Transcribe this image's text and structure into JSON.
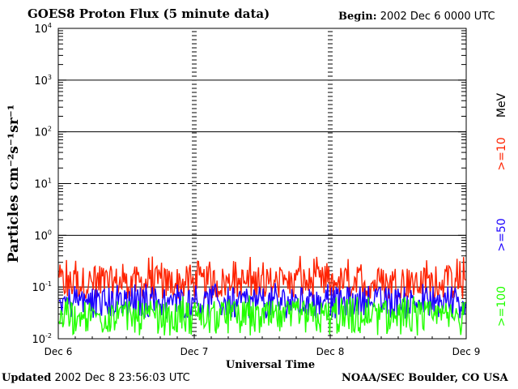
{
  "header": {
    "title": "GOES8 Proton Flux (5 minute data)",
    "begin_label": "Begin:",
    "begin_value": "2002 Dec 6 0000 UTC"
  },
  "footer": {
    "updated_label": "Updated",
    "updated_value": "2002 Dec  8 23:56:03 UTC",
    "credit": "NOAA/SEC Boulder, CO USA"
  },
  "chart_data": {
    "type": "line",
    "title": "GOES8 Proton Flux (5 minute data)",
    "xlabel": "Universal Time",
    "ylabel": "Particles cm⁻²s⁻¹sr⁻¹",
    "y_scale": "log",
    "ylim": [
      0.01,
      10000
    ],
    "xlim": [
      "Dec 6",
      "Dec 9"
    ],
    "x_tick_labels": [
      "Dec 6",
      "Dec 7",
      "Dec 8",
      "Dec 9"
    ],
    "y_tick_labels": [
      {
        "base": "10",
        "exp": "4"
      },
      {
        "base": "10",
        "exp": "3"
      },
      {
        "base": "10",
        "exp": "2"
      },
      {
        "base": "10",
        "exp": "1"
      },
      {
        "base": "10",
        "exp": "0"
      },
      {
        "base": "10",
        "exp": "-1"
      },
      {
        "base": "10",
        "exp": "-2"
      }
    ],
    "unit_label": "MeV",
    "grid": true,
    "legend": "right, vertical",
    "series": [
      {
        "name": ">=10",
        "color": "#ff2200",
        "typical_range": [
          0.06,
          0.4
        ],
        "typical_value": 0.12
      },
      {
        "name": ">=50",
        "color": "#1a00ff",
        "typical_range": [
          0.02,
          0.12
        ],
        "typical_value": 0.05
      },
      {
        "name": ">=100",
        "color": "#22ff00",
        "typical_range": [
          0.01,
          0.07
        ],
        "typical_value": 0.025
      }
    ],
    "threshold_lines": [
      {
        "value": 10,
        "style": "dashed"
      },
      {
        "value": 0.1,
        "style": "solid"
      }
    ]
  }
}
